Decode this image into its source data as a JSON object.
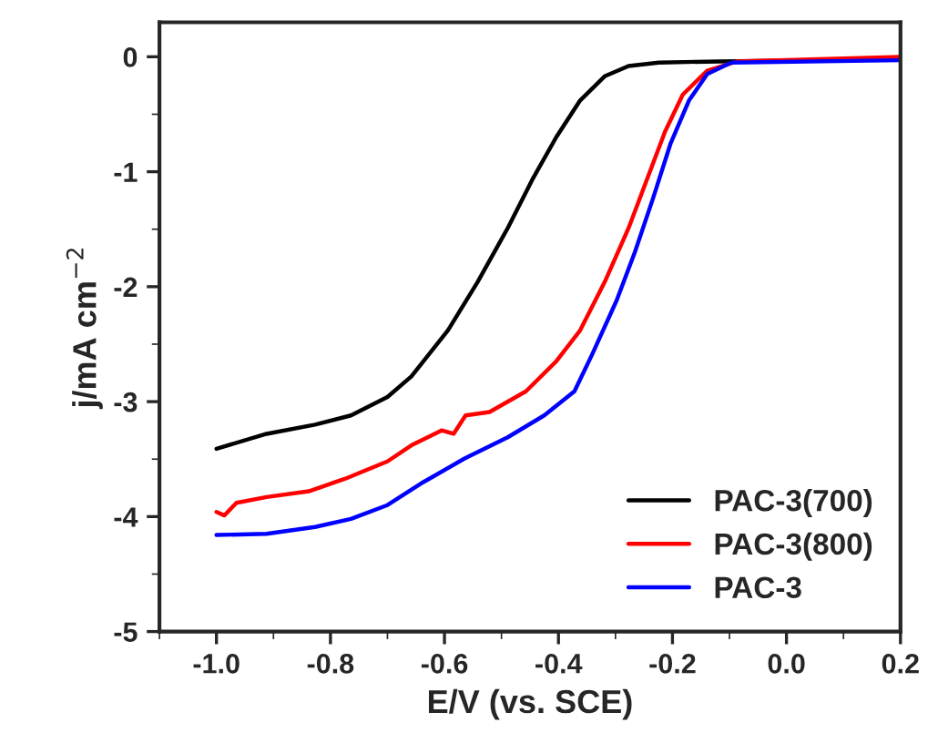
{
  "chart_data": {
    "type": "line",
    "xlabel": "E/V (vs. SCE)",
    "ylabel": "j/mA cm$^{−2}$",
    "xlim": [
      -1.1,
      0.2
    ],
    "ylim": [
      -5,
      0.3
    ],
    "xticks": [
      {
        "value": -1.0,
        "label": "-1.0"
      },
      {
        "value": -0.8,
        "label": "-0.8"
      },
      {
        "value": -0.6,
        "label": "-0.6"
      },
      {
        "value": -0.4,
        "label": "-0.4"
      },
      {
        "value": -0.2,
        "label": "-0.2"
      },
      {
        "value": 0.0,
        "label": "0.0"
      },
      {
        "value": 0.2,
        "label": "0.2"
      }
    ],
    "yticks": [
      0,
      -1,
      -2,
      -3,
      -4,
      -5
    ],
    "legend": "lower right",
    "grid": false,
    "series": [
      {
        "name": "PAC-3(700)",
        "color": "#000000",
        "x": [
          -1.0,
          -0.912,
          -0.827,
          -0.764,
          -0.7,
          -0.658,
          -0.594,
          -0.542,
          -0.489,
          -0.446,
          -0.404,
          -0.362,
          -0.319,
          -0.277,
          -0.224,
          -0.118,
          0.2
        ],
        "values": [
          -3.41,
          -3.28,
          -3.2,
          -3.12,
          -2.96,
          -2.78,
          -2.38,
          -1.96,
          -1.49,
          -1.07,
          -0.7,
          -0.38,
          -0.17,
          -0.08,
          -0.05,
          -0.04,
          -0.02
        ]
      },
      {
        "name": "PAC-3(800)",
        "color": "#ff0000",
        "x": [
          -1.0,
          -0.986,
          -0.965,
          -0.912,
          -0.838,
          -0.774,
          -0.7,
          -0.658,
          -0.605,
          -0.584,
          -0.563,
          -0.521,
          -0.457,
          -0.404,
          -0.362,
          -0.319,
          -0.277,
          -0.245,
          -0.213,
          -0.182,
          -0.139,
          -0.086,
          0.2
        ],
        "values": [
          -3.96,
          -3.99,
          -3.88,
          -3.83,
          -3.78,
          -3.67,
          -3.52,
          -3.38,
          -3.25,
          -3.28,
          -3.12,
          -3.09,
          -2.91,
          -2.65,
          -2.38,
          -1.96,
          -1.49,
          -1.07,
          -0.65,
          -0.33,
          -0.12,
          -0.04,
          0.0
        ]
      },
      {
        "name": "PAC-3",
        "color": "#0000ff",
        "x": [
          -1.0,
          -0.912,
          -0.827,
          -0.764,
          -0.7,
          -0.637,
          -0.563,
          -0.489,
          -0.425,
          -0.372,
          -0.341,
          -0.298,
          -0.266,
          -0.234,
          -0.203,
          -0.171,
          -0.139,
          -0.097,
          0.2
        ],
        "values": [
          -4.16,
          -4.15,
          -4.09,
          -4.02,
          -3.9,
          -3.7,
          -3.49,
          -3.31,
          -3.12,
          -2.91,
          -2.59,
          -2.12,
          -1.7,
          -1.23,
          -0.75,
          -0.38,
          -0.15,
          -0.05,
          -0.03
        ]
      }
    ]
  }
}
